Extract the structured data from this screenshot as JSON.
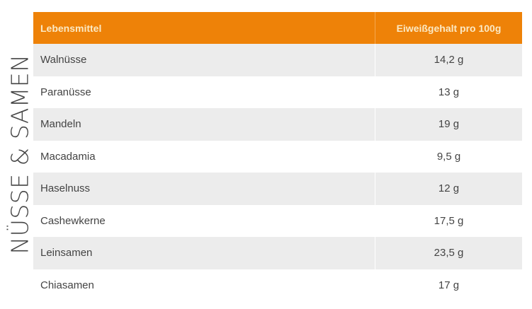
{
  "side_label": "NÜSSE & SAMEN",
  "accent": "#ee8208",
  "headers": {
    "food": "Lebensmittel",
    "protein": "Eiweißgehalt pro 100g"
  },
  "rows": [
    {
      "food": "Walnüsse",
      "protein": "14,2 g"
    },
    {
      "food": "Paranüsse",
      "protein": "13 g"
    },
    {
      "food": "Mandeln",
      "protein": "19 g"
    },
    {
      "food": "Macadamia",
      "protein": "9,5 g"
    },
    {
      "food": "Haselnuss",
      "protein": "12 g"
    },
    {
      "food": "Cashewkerne",
      "protein": "17,5 g"
    },
    {
      "food": "Leinsamen",
      "protein": "23,5 g"
    },
    {
      "food": "Chiasamen",
      "protein": "17 g"
    }
  ]
}
